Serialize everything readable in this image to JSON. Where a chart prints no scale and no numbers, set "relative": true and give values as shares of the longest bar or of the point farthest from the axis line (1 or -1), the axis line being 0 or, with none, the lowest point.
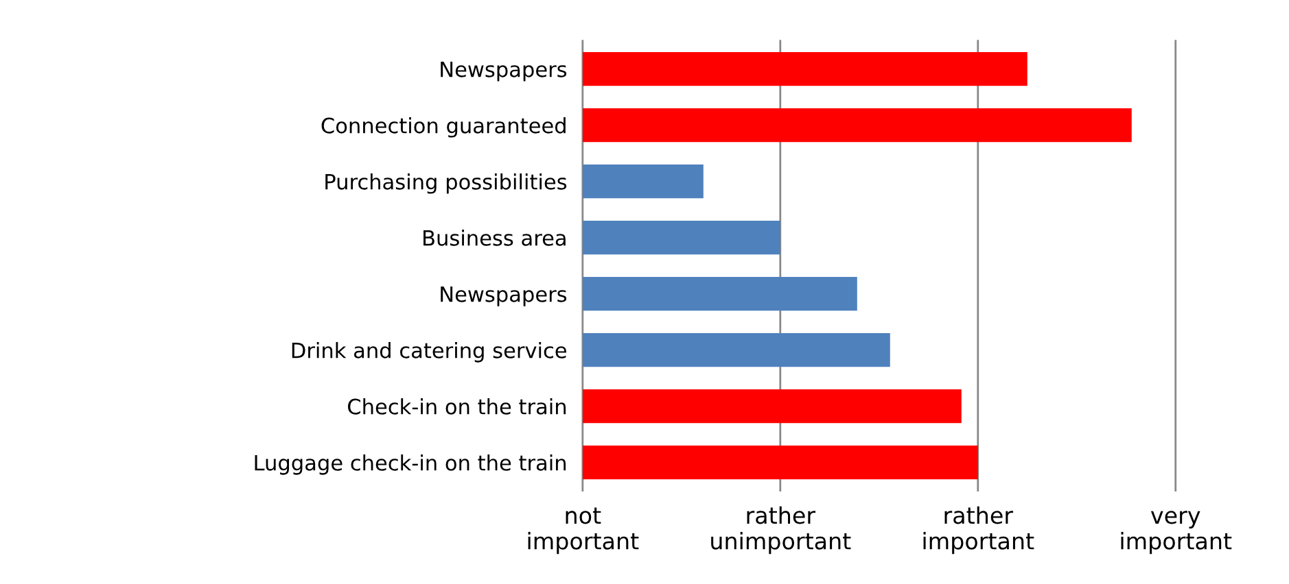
{
  "chart_data": {
    "type": "bar",
    "orientation": "horizontal",
    "relative": true,
    "categories": [
      "Newspapers",
      "Connection guaranteed",
      "Purchasing possibilities",
      "Business area",
      "Newspapers",
      "Drink and catering service",
      "Check-in on the train",
      "Luggage check-in on the train"
    ],
    "values": [
      0.81,
      1,
      0.22,
      0.36,
      0.5,
      0.56,
      0.69,
      0.72
    ],
    "colors": [
      "#ff0000",
      "#ff0000",
      "#4f81bd",
      "#4f81bd",
      "#4f81bd",
      "#4f81bd",
      "#ff0000",
      "#ff0000"
    ],
    "ref_lines": [
      {
        "axis": "x",
        "value": 0,
        "label": "not\nimportant",
        "color": "#888888"
      },
      {
        "axis": "x",
        "value": 0.36,
        "label": "rather\nunimportant",
        "color": "#888888"
      },
      {
        "axis": "x",
        "value": 0.72,
        "label": "rather\nimportant",
        "color": "#888888"
      },
      {
        "axis": "x",
        "value": 1.08,
        "label": "very\nimportant",
        "color": "#888888"
      }
    ],
    "legend": false
  }
}
